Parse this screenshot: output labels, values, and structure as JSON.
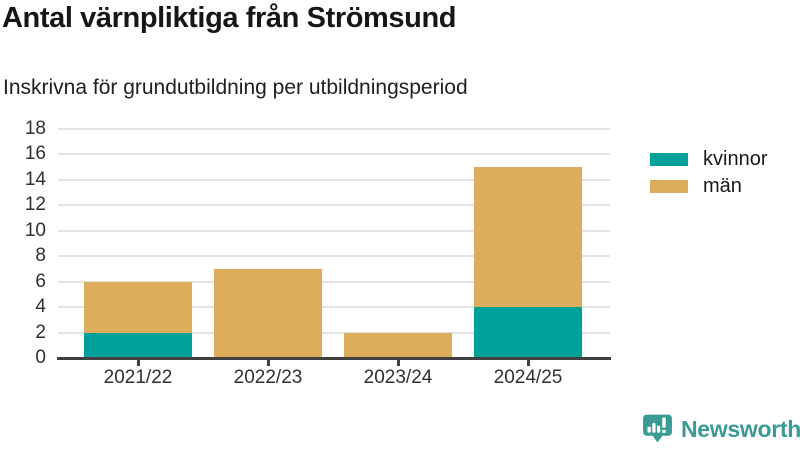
{
  "header": {
    "title": "Antal värnpliktiga från Strömsund",
    "subtitle": "Inskrivna för grundutbildning per utbildningsperiod"
  },
  "chart_data": {
    "type": "bar",
    "stacked": true,
    "title": "Antal värnpliktiga från Strömsund",
    "subtitle": "Inskrivna för grundutbildning per utbildningsperiod",
    "categories": [
      "2021/22",
      "2022/23",
      "2023/24",
      "2024/25"
    ],
    "series": [
      {
        "name": "kvinnor",
        "color": "#00a19a",
        "values": [
          2,
          0,
          0,
          4
        ]
      },
      {
        "name": "män",
        "color": "#dcad5a",
        "values": [
          4,
          7,
          2,
          11
        ]
      }
    ],
    "stack_totals": [
      6,
      7,
      2,
      15
    ],
    "xlabel": "",
    "ylabel": "",
    "ylim": [
      0,
      18
    ],
    "ytick_step": 2,
    "yticks": [
      0,
      2,
      4,
      6,
      8,
      10,
      12,
      14,
      16,
      18
    ],
    "grid": true,
    "legend_position": "right"
  },
  "branding": {
    "logo_text": "Newsworthy",
    "logo_color": "#3a9a94",
    "logo_icon": "bar-chart-speech-bubble"
  },
  "colors": {
    "kvinnor": "#00a19a",
    "man": "#dcad5a",
    "axis": "#404040",
    "gridline": "#e4e4e4",
    "text": "#1f1f1f"
  }
}
